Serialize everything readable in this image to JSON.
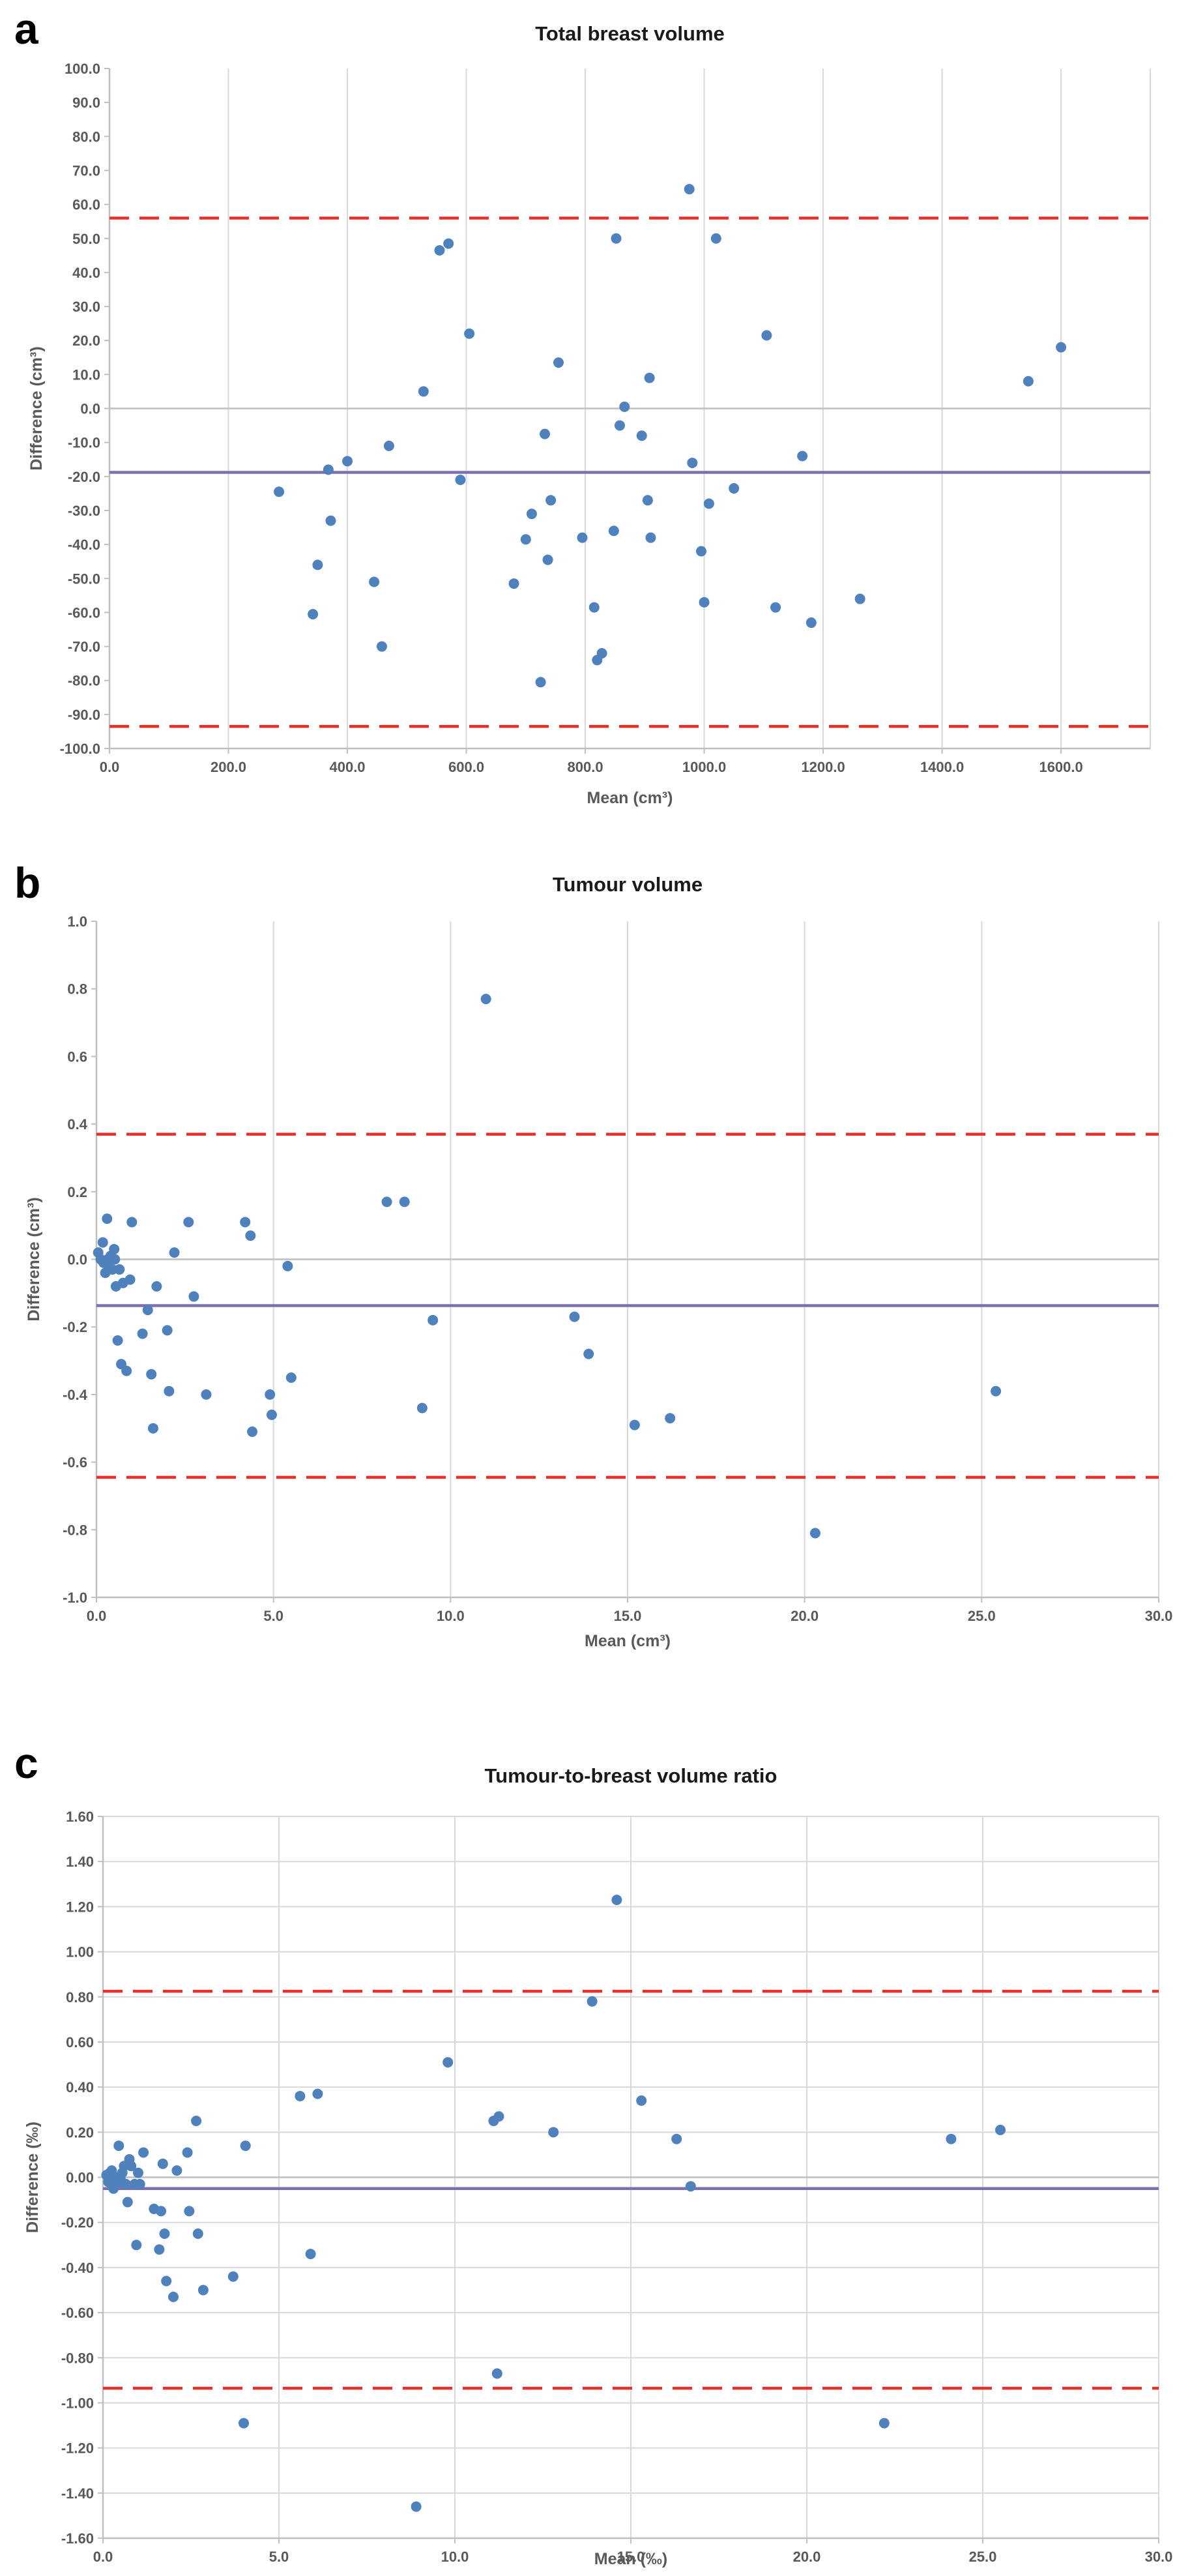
{
  "panels": [
    {
      "letter": "a"
    },
    {
      "letter": "b"
    },
    {
      "letter": "c"
    }
  ],
  "chart_data": [
    {
      "type": "scatter",
      "title": "Total breast volume",
      "xlabel": "Mean (cm³)",
      "ylabel": "Difference (cm³)",
      "xlim": [
        0,
        1750
      ],
      "ylim": [
        -100,
        100
      ],
      "xtick_step": 200,
      "ytick_step": 10,
      "decimals": 1,
      "xticks": [
        "0.0",
        "200.0",
        "400.0",
        "600.0",
        "800.0",
        "1000.0",
        "1200.0",
        "1400.0",
        "1600.0"
      ],
      "yticks": [
        "-100.0",
        "-90.0",
        "-80.0",
        "-70.0",
        "-60.0",
        "-50.0",
        "-40.0",
        "-30.0",
        "-20.0",
        "-10.0",
        "0.0",
        "10.0",
        "20.0",
        "30.0",
        "40.0",
        "50.0",
        "60.0",
        "70.0",
        "80.0",
        "90.0",
        "100.0"
      ],
      "grid": {
        "vertical": true,
        "horizontal": false
      },
      "mean_difference": -18.8,
      "limits_of_agreement": [
        56.0,
        -93.5
      ],
      "colors": {
        "points": "#4f81bd",
        "mean_line": "#7f6fb0",
        "limits": "#e8302a",
        "grid": "#d9d9d9"
      },
      "points": [
        [
          285,
          -24.5
        ],
        [
          342,
          -60.5
        ],
        [
          350,
          -46
        ],
        [
          368,
          -18
        ],
        [
          372,
          -33
        ],
        [
          400,
          -15.5
        ],
        [
          445,
          -51
        ],
        [
          458,
          -70
        ],
        [
          470,
          -11
        ],
        [
          528,
          5
        ],
        [
          555,
          46.5
        ],
        [
          570,
          48.5
        ],
        [
          590,
          -21
        ],
        [
          605,
          22
        ],
        [
          680,
          -51.5
        ],
        [
          700,
          -38.5
        ],
        [
          710,
          -31
        ],
        [
          725,
          -80.5
        ],
        [
          732,
          -7.5
        ],
        [
          737,
          -44.5
        ],
        [
          742,
          -27
        ],
        [
          755,
          13.5
        ],
        [
          795,
          -38
        ],
        [
          815,
          -58.5
        ],
        [
          820,
          -74
        ],
        [
          828,
          -72
        ],
        [
          848,
          -36
        ],
        [
          852,
          50
        ],
        [
          858,
          -5
        ],
        [
          866,
          0.5
        ],
        [
          895,
          -8
        ],
        [
          905,
          -27
        ],
        [
          908,
          9
        ],
        [
          910,
          -38
        ],
        [
          975,
          64.5
        ],
        [
          980,
          -16
        ],
        [
          995,
          -42
        ],
        [
          1000,
          -57
        ],
        [
          1008,
          -28
        ],
        [
          1020,
          50
        ],
        [
          1050,
          -23.5
        ],
        [
          1105,
          21.5
        ],
        [
          1120,
          -58.5
        ],
        [
          1165,
          -14
        ],
        [
          1180,
          -63
        ],
        [
          1262,
          -56
        ],
        [
          1545,
          8
        ],
        [
          1600,
          18
        ]
      ]
    },
    {
      "type": "scatter",
      "title": "Tumour volume",
      "xlabel": "Mean (cm³)",
      "ylabel": "Difference (cm³)",
      "xlim": [
        0,
        30
      ],
      "ylim": [
        -1.0,
        1.0
      ],
      "xtick_step": 5,
      "ytick_step": 0.2,
      "decimals": 1,
      "xticks": [
        "0.0",
        "5.0",
        "10.0",
        "15.0",
        "20.0",
        "25.0",
        "30.0"
      ],
      "yticks": [
        "-1.0",
        "-0.8",
        "-0.6",
        "-0.4",
        "-0.2",
        "0.0",
        "0.2",
        "0.4",
        "0.6",
        "0.8",
        "1.0"
      ],
      "grid": {
        "vertical": true,
        "horizontal": false
      },
      "mean_difference": -0.137,
      "limits_of_agreement": [
        0.37,
        -0.645
      ],
      "colors": {
        "points": "#4f81bd",
        "mean_line": "#7f6fb0",
        "limits": "#e8302a",
        "grid": "#d9d9d9"
      },
      "points": [
        [
          0.05,
          0.02
        ],
        [
          0.12,
          0.0
        ],
        [
          0.18,
          0.05
        ],
        [
          0.2,
          -0.01
        ],
        [
          0.25,
          -0.04
        ],
        [
          0.3,
          0.12
        ],
        [
          0.32,
          0.0
        ],
        [
          0.35,
          -0.02
        ],
        [
          0.4,
          0.01
        ],
        [
          0.45,
          -0.03
        ],
        [
          0.5,
          0.03
        ],
        [
          0.52,
          0.0
        ],
        [
          0.55,
          -0.08
        ],
        [
          0.6,
          -0.24
        ],
        [
          0.65,
          -0.03
        ],
        [
          0.7,
          -0.31
        ],
        [
          0.75,
          -0.07
        ],
        [
          0.85,
          -0.33
        ],
        [
          0.95,
          -0.06
        ],
        [
          1.0,
          0.11
        ],
        [
          1.3,
          -0.22
        ],
        [
          1.45,
          -0.15
        ],
        [
          1.55,
          -0.34
        ],
        [
          1.6,
          -0.5
        ],
        [
          1.7,
          -0.08
        ],
        [
          2.0,
          -0.21
        ],
        [
          2.05,
          -0.39
        ],
        [
          2.2,
          0.02
        ],
        [
          2.6,
          0.11
        ],
        [
          2.75,
          -0.11
        ],
        [
          3.1,
          -0.4
        ],
        [
          4.2,
          0.11
        ],
        [
          4.35,
          0.07
        ],
        [
          4.4,
          -0.51
        ],
        [
          4.9,
          -0.4
        ],
        [
          4.95,
          -0.46
        ],
        [
          5.4,
          -0.02
        ],
        [
          5.5,
          -0.35
        ],
        [
          8.2,
          0.17
        ],
        [
          8.7,
          0.17
        ],
        [
          9.2,
          -0.44
        ],
        [
          9.5,
          -0.18
        ],
        [
          11.0,
          0.77
        ],
        [
          13.5,
          -0.17
        ],
        [
          13.9,
          -0.28
        ],
        [
          15.2,
          -0.49
        ],
        [
          16.2,
          -0.47
        ],
        [
          20.3,
          -0.81
        ],
        [
          25.4,
          -0.39
        ]
      ]
    },
    {
      "type": "scatter",
      "title": "Tumour-to-breast volume ratio",
      "xlabel": "Mean (‰)",
      "ylabel": "Difference (‰)",
      "xlim": [
        0,
        30
      ],
      "ylim": [
        -1.6,
        1.6
      ],
      "xtick_step": 5,
      "ytick_step": 0.2,
      "decimals": 2,
      "xticks": [
        "0.0",
        "5.0",
        "10.0",
        "15.0",
        "20.0",
        "25.0",
        "30.0"
      ],
      "yticks": [
        "-1.60",
        "-1.40",
        "-1.20",
        "-1.00",
        "-0.80",
        "-0.60",
        "-0.40",
        "-0.20",
        "0.00",
        "0.20",
        "0.40",
        "0.60",
        "0.80",
        "1.00",
        "1.20",
        "1.40",
        "1.60"
      ],
      "grid": {
        "vertical": true,
        "horizontal": true
      },
      "mean_difference": -0.05,
      "limits_of_agreement": [
        0.825,
        -0.935
      ],
      "colors": {
        "points": "#4f81bd",
        "mean_line": "#7f6fb0",
        "limits": "#e8302a",
        "grid": "#d9d9d9"
      },
      "points": [
        [
          0.1,
          0.01
        ],
        [
          0.15,
          -0.02
        ],
        [
          0.2,
          0.02
        ],
        [
          0.25,
          0.03
        ],
        [
          0.3,
          -0.05
        ],
        [
          0.35,
          0.0
        ],
        [
          0.4,
          -0.03
        ],
        [
          0.45,
          0.14
        ],
        [
          0.5,
          -0.01
        ],
        [
          0.55,
          0.02
        ],
        [
          0.6,
          0.05
        ],
        [
          0.65,
          -0.03
        ],
        [
          0.7,
          -0.11
        ],
        [
          0.75,
          0.08
        ],
        [
          0.8,
          0.05
        ],
        [
          0.9,
          -0.03
        ],
        [
          0.95,
          -0.3
        ],
        [
          1.0,
          0.02
        ],
        [
          1.05,
          -0.03
        ],
        [
          1.15,
          0.11
        ],
        [
          1.45,
          -0.14
        ],
        [
          1.6,
          -0.32
        ],
        [
          1.65,
          -0.15
        ],
        [
          1.7,
          0.06
        ],
        [
          1.75,
          -0.25
        ],
        [
          1.8,
          -0.46
        ],
        [
          2.0,
          -0.53
        ],
        [
          2.1,
          0.03
        ],
        [
          2.4,
          0.11
        ],
        [
          2.45,
          -0.15
        ],
        [
          2.65,
          0.25
        ],
        [
          2.7,
          -0.25
        ],
        [
          2.85,
          -0.5
        ],
        [
          3.7,
          -0.44
        ],
        [
          4.0,
          -1.09
        ],
        [
          4.05,
          0.14
        ],
        [
          5.6,
          0.36
        ],
        [
          5.9,
          -0.34
        ],
        [
          6.1,
          0.37
        ],
        [
          8.9,
          -1.46
        ],
        [
          9.8,
          0.51
        ],
        [
          11.1,
          0.25
        ],
        [
          11.2,
          -0.87
        ],
        [
          11.25,
          0.27
        ],
        [
          12.8,
          0.2
        ],
        [
          13.9,
          0.78
        ],
        [
          14.6,
          1.23
        ],
        [
          15.3,
          0.34
        ],
        [
          16.3,
          0.17
        ],
        [
          16.7,
          -0.04
        ],
        [
          22.2,
          -1.09
        ],
        [
          24.1,
          0.17
        ],
        [
          25.5,
          0.21
        ]
      ]
    }
  ]
}
